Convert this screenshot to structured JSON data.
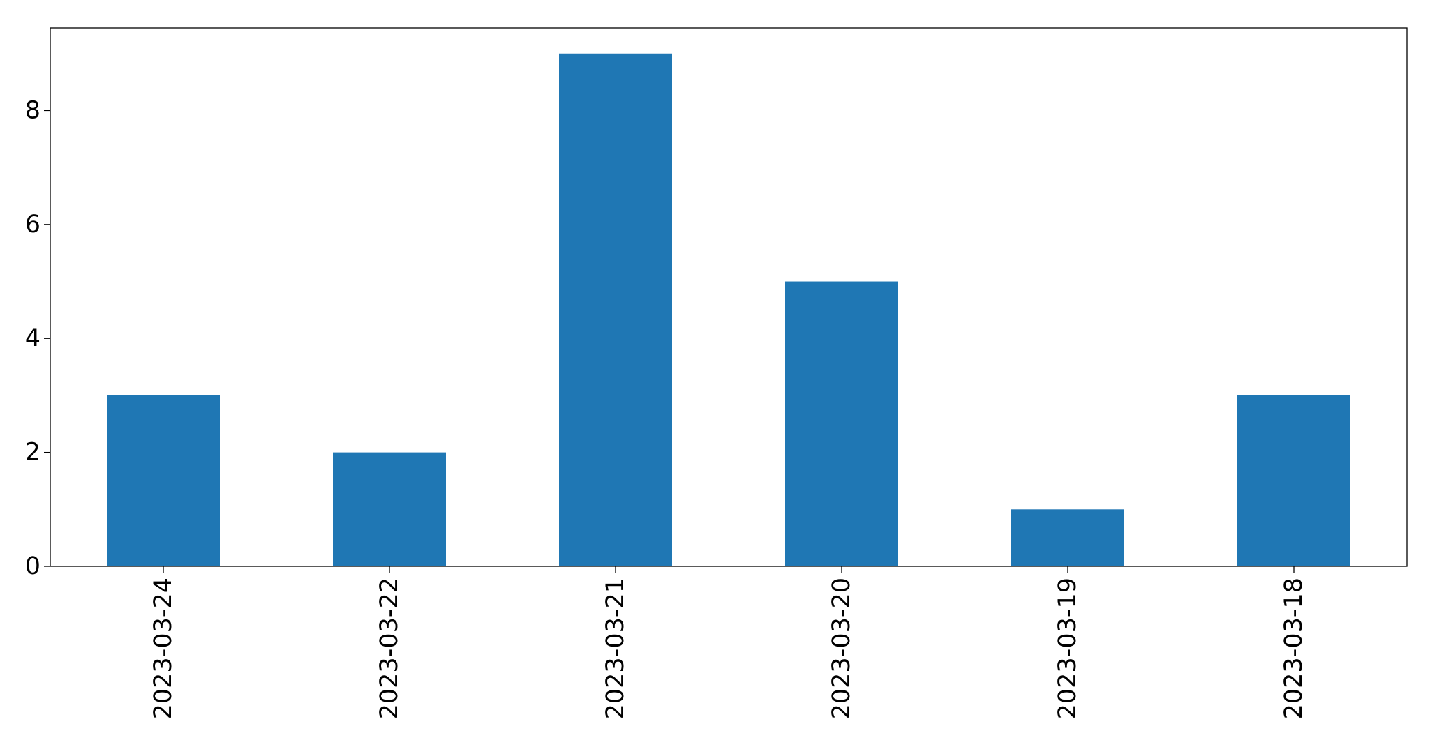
{
  "chart_data": {
    "type": "bar",
    "title": "",
    "xlabel": "",
    "ylabel": "",
    "categories": [
      "2023-03-24",
      "2023-03-22",
      "2023-03-21",
      "2023-03-20",
      "2023-03-19",
      "2023-03-18"
    ],
    "values": [
      3,
      2,
      9,
      5,
      1,
      3
    ],
    "ylim": [
      0,
      9.45
    ],
    "yticks": [
      0,
      2,
      4,
      6,
      8
    ],
    "grid": false,
    "legend": "none",
    "bar_color": "#1f77b4"
  }
}
